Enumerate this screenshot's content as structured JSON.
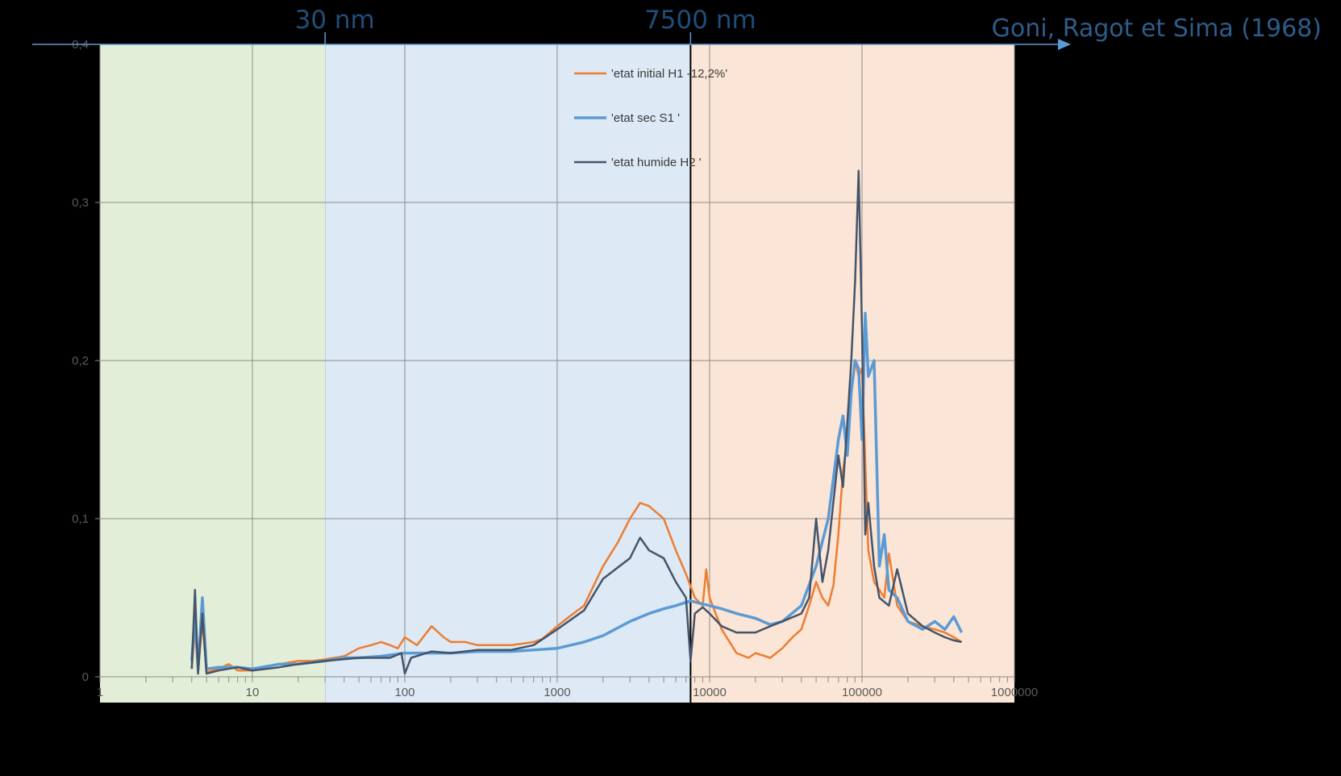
{
  "chart_data": {
    "type": "line",
    "x_scale": "log",
    "xlim": [
      1,
      1000000
    ],
    "ylim": [
      0,
      0.4
    ],
    "x_tick_labels": [
      "1",
      "10",
      "100",
      "1000",
      "10000",
      "100000",
      "1000000"
    ],
    "y_tick_labels": [
      "0",
      "0,1",
      "0,2",
      "0,3",
      "0,4"
    ],
    "grid": true,
    "legend_position": "top-center",
    "regions": [
      {
        "from": 1,
        "to": 30,
        "color": "#e3eed8"
      },
      {
        "from": 30,
        "to": 7500,
        "color": "#dde9f5"
      },
      {
        "from": 7500,
        "to": 1000000,
        "color": "#fbe5d6"
      }
    ],
    "markers": [
      {
        "x": 30,
        "label": "30 nm"
      },
      {
        "x": 7500,
        "label": "7500 nm"
      }
    ],
    "reference": "Goni, Ragot et Sima (1968)",
    "series": [
      {
        "name": "'etat initial H1 -12,2%'",
        "color": "#ed7d31",
        "points": [
          [
            4,
            0.005
          ],
          [
            4.2,
            0.03
          ],
          [
            4.4,
            0.005
          ],
          [
            4.7,
            0.035
          ],
          [
            5,
            0.003
          ],
          [
            6,
            0.005
          ],
          [
            7,
            0.008
          ],
          [
            8,
            0.004
          ],
          [
            10,
            0.004
          ],
          [
            12,
            0.006
          ],
          [
            15,
            0.008
          ],
          [
            20,
            0.01
          ],
          [
            25,
            0.01
          ],
          [
            30,
            0.011
          ],
          [
            40,
            0.013
          ],
          [
            50,
            0.018
          ],
          [
            60,
            0.02
          ],
          [
            70,
            0.022
          ],
          [
            80,
            0.02
          ],
          [
            90,
            0.018
          ],
          [
            100,
            0.025
          ],
          [
            120,
            0.02
          ],
          [
            150,
            0.032
          ],
          [
            180,
            0.025
          ],
          [
            200,
            0.022
          ],
          [
            250,
            0.022
          ],
          [
            300,
            0.02
          ],
          [
            400,
            0.02
          ],
          [
            500,
            0.02
          ],
          [
            600,
            0.021
          ],
          [
            700,
            0.022
          ],
          [
            800,
            0.024
          ],
          [
            1000,
            0.032
          ],
          [
            1200,
            0.038
          ],
          [
            1500,
            0.045
          ],
          [
            2000,
            0.07
          ],
          [
            2500,
            0.085
          ],
          [
            3000,
            0.1
          ],
          [
            3500,
            0.11
          ],
          [
            4000,
            0.108
          ],
          [
            5000,
            0.1
          ],
          [
            6000,
            0.08
          ],
          [
            7000,
            0.065
          ],
          [
            8000,
            0.05
          ],
          [
            9000,
            0.045
          ],
          [
            9500,
            0.068
          ],
          [
            10000,
            0.05
          ],
          [
            12000,
            0.03
          ],
          [
            15000,
            0.015
          ],
          [
            18000,
            0.012
          ],
          [
            20000,
            0.015
          ],
          [
            25000,
            0.012
          ],
          [
            30000,
            0.018
          ],
          [
            35000,
            0.025
          ],
          [
            40000,
            0.03
          ],
          [
            45000,
            0.045
          ],
          [
            50000,
            0.06
          ],
          [
            55000,
            0.05
          ],
          [
            60000,
            0.045
          ],
          [
            65000,
            0.058
          ],
          [
            70000,
            0.09
          ],
          [
            75000,
            0.13
          ],
          [
            80000,
            0.15
          ],
          [
            85000,
            0.18
          ],
          [
            90000,
            0.2
          ],
          [
            95000,
            0.19
          ],
          [
            100000,
            0.195
          ],
          [
            110000,
            0.08
          ],
          [
            120000,
            0.06
          ],
          [
            130000,
            0.055
          ],
          [
            140000,
            0.05
          ],
          [
            150000,
            0.078
          ],
          [
            170000,
            0.045
          ],
          [
            200000,
            0.035
          ],
          [
            250000,
            0.032
          ],
          [
            300000,
            0.03
          ],
          [
            350000,
            0.028
          ],
          [
            400000,
            0.025
          ],
          [
            450000,
            0.022
          ]
        ]
      },
      {
        "name": "'etat sec S1 '",
        "color": "#5b9bd5",
        "points": [
          [
            4,
            0.01
          ],
          [
            4.2,
            0.04
          ],
          [
            4.4,
            0.005
          ],
          [
            4.7,
            0.05
          ],
          [
            5,
            0.005
          ],
          [
            6,
            0.006
          ],
          [
            8,
            0.006
          ],
          [
            10,
            0.005
          ],
          [
            15,
            0.008
          ],
          [
            20,
            0.008
          ],
          [
            30,
            0.01
          ],
          [
            40,
            0.012
          ],
          [
            50,
            0.012
          ],
          [
            70,
            0.013
          ],
          [
            100,
            0.015
          ],
          [
            200,
            0.015
          ],
          [
            300,
            0.016
          ],
          [
            500,
            0.016
          ],
          [
            700,
            0.017
          ],
          [
            1000,
            0.018
          ],
          [
            1500,
            0.022
          ],
          [
            2000,
            0.026
          ],
          [
            3000,
            0.035
          ],
          [
            4000,
            0.04
          ],
          [
            5000,
            0.043
          ],
          [
            6000,
            0.045
          ],
          [
            7500,
            0.048
          ],
          [
            9000,
            0.046
          ],
          [
            10000,
            0.045
          ],
          [
            12000,
            0.043
          ],
          [
            15000,
            0.04
          ],
          [
            20000,
            0.037
          ],
          [
            25000,
            0.033
          ],
          [
            30000,
            0.035
          ],
          [
            40000,
            0.045
          ],
          [
            50000,
            0.07
          ],
          [
            60000,
            0.1
          ],
          [
            70000,
            0.15
          ],
          [
            75000,
            0.165
          ],
          [
            80000,
            0.14
          ],
          [
            85000,
            0.18
          ],
          [
            90000,
            0.2
          ],
          [
            95000,
            0.195
          ],
          [
            100000,
            0.15
          ],
          [
            105000,
            0.23
          ],
          [
            110000,
            0.19
          ],
          [
            120000,
            0.2
          ],
          [
            130000,
            0.07
          ],
          [
            140000,
            0.09
          ],
          [
            150000,
            0.055
          ],
          [
            170000,
            0.05
          ],
          [
            200000,
            0.035
          ],
          [
            250000,
            0.03
          ],
          [
            300000,
            0.035
          ],
          [
            350000,
            0.03
          ],
          [
            400000,
            0.038
          ],
          [
            450000,
            0.028
          ]
        ]
      },
      {
        "name": "'etat humide H2 '",
        "color": "#44546a",
        "points": [
          [
            4,
            0.005
          ],
          [
            4.2,
            0.055
          ],
          [
            4.4,
            0.002
          ],
          [
            4.7,
            0.04
          ],
          [
            5,
            0.002
          ],
          [
            6,
            0.004
          ],
          [
            8,
            0.006
          ],
          [
            10,
            0.004
          ],
          [
            15,
            0.006
          ],
          [
            20,
            0.008
          ],
          [
            30,
            0.01
          ],
          [
            50,
            0.012
          ],
          [
            80,
            0.012
          ],
          [
            95,
            0.015
          ],
          [
            100,
            0.002
          ],
          [
            110,
            0.012
          ],
          [
            150,
            0.016
          ],
          [
            200,
            0.015
          ],
          [
            300,
            0.017
          ],
          [
            500,
            0.017
          ],
          [
            700,
            0.02
          ],
          [
            1000,
            0.03
          ],
          [
            1500,
            0.042
          ],
          [
            2000,
            0.062
          ],
          [
            3000,
            0.075
          ],
          [
            3500,
            0.088
          ],
          [
            4000,
            0.08
          ],
          [
            5000,
            0.075
          ],
          [
            6000,
            0.06
          ],
          [
            7000,
            0.05
          ],
          [
            7500,
            0.01
          ],
          [
            8000,
            0.04
          ],
          [
            9000,
            0.044
          ],
          [
            10000,
            0.04
          ],
          [
            12000,
            0.032
          ],
          [
            15000,
            0.028
          ],
          [
            20000,
            0.028
          ],
          [
            25000,
            0.032
          ],
          [
            30000,
            0.035
          ],
          [
            40000,
            0.04
          ],
          [
            45000,
            0.05
          ],
          [
            50000,
            0.1
          ],
          [
            55000,
            0.06
          ],
          [
            60000,
            0.08
          ],
          [
            70000,
            0.14
          ],
          [
            75000,
            0.12
          ],
          [
            80000,
            0.16
          ],
          [
            85000,
            0.2
          ],
          [
            90000,
            0.25
          ],
          [
            95000,
            0.32
          ],
          [
            100000,
            0.22
          ],
          [
            105000,
            0.09
          ],
          [
            110000,
            0.11
          ],
          [
            120000,
            0.07
          ],
          [
            130000,
            0.05
          ],
          [
            150000,
            0.045
          ],
          [
            170000,
            0.068
          ],
          [
            200000,
            0.04
          ],
          [
            250000,
            0.032
          ],
          [
            300000,
            0.028
          ],
          [
            350000,
            0.025
          ],
          [
            400000,
            0.023
          ],
          [
            450000,
            0.022
          ]
        ]
      }
    ]
  }
}
